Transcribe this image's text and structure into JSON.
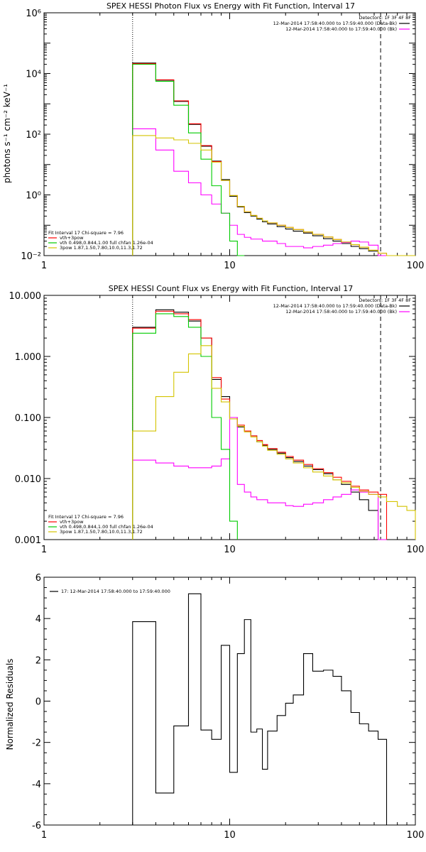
{
  "chart_data": [
    {
      "type": "line",
      "title": "SPEX HESSI Photon Flux vs Energy with Fit Function, Interval 17",
      "ylabel": "photons s⁻¹ cm⁻² keV⁻¹",
      "xlabel": "",
      "xscale": "log",
      "yscale": "log",
      "xlim": [
        1,
        100
      ],
      "ylim": [
        0.01,
        1000000
      ],
      "xticks": [
        1,
        10,
        100
      ],
      "xtick_labels": [
        "1",
        "10",
        "100"
      ],
      "yticks": [
        0.01,
        1,
        100,
        10000,
        1000000
      ],
      "ytick_labels": [
        "10⁻²",
        "10⁰",
        "10²",
        "10⁴",
        "10⁶"
      ],
      "vlines": [
        {
          "x": 3,
          "style": "dotted"
        },
        {
          "x": 65,
          "style": "dashed"
        }
      ],
      "legend_top": {
        "header": "Detectors: 1F 3F 4F 8F",
        "entries": [
          {
            "text": "12-Mar-2014 17:58:40.000 to 17:59:40.000 (Data-Bk)",
            "color": "#000000"
          },
          {
            "text": "12-Mar-2014 17:58:40.000 to 17:59:40.000 (Bk)",
            "color": "#ff00ff"
          }
        ]
      },
      "legend_bottom": {
        "header": "Fit Interval 17    Chi-square = 7.96",
        "entries": [
          {
            "text": "vth+3pow",
            "color": "#ff0000"
          },
          {
            "text": "vth 0.498,0.844,1.00  full chfan 1.26e-04",
            "color": "#00cc00"
          },
          {
            "text": "3pow 1.87,1.50,7.80,10.0,11.3,1.72",
            "color": "#d4c400"
          }
        ]
      },
      "edges": [
        3,
        4,
        5,
        6,
        7,
        8,
        9,
        10,
        11,
        12,
        13,
        14,
        15,
        16,
        18,
        20,
        22,
        25,
        28,
        32,
        36,
        40,
        45,
        50,
        56,
        63,
        70,
        80,
        90,
        100
      ],
      "series": [
        {
          "name": "Data-Bk",
          "color": "#000000",
          "values": [
            22000,
            6000,
            1200,
            210,
            40,
            13,
            3.2,
            0.9,
            0.4,
            0.26,
            0.2,
            0.16,
            0.13,
            0.11,
            0.09,
            0.075,
            0.064,
            0.055,
            0.045,
            0.036,
            0.03,
            0.025,
            0.02,
            0.017,
            0.014,
            0.01,
            null,
            null,
            null
          ]
        },
        {
          "name": "vth+3pow",
          "color": "#ff0000",
          "values": [
            21000,
            6200,
            1250,
            220,
            42,
            12.5,
            3.0,
            0.95,
            0.42,
            0.28,
            0.21,
            0.17,
            0.14,
            0.12,
            0.1,
            0.085,
            0.072,
            0.06,
            0.05,
            0.041,
            0.034,
            0.028,
            0.023,
            0.019,
            0.015,
            0.012,
            null,
            null,
            null
          ]
        },
        {
          "name": "Bk",
          "color": "#ff00ff",
          "values": [
            150,
            30,
            6,
            2.5,
            1.0,
            0.5,
            0.25,
            0.1,
            0.05,
            0.04,
            0.035,
            0.035,
            0.03,
            0.03,
            0.025,
            0.02,
            0.02,
            0.018,
            0.02,
            0.022,
            0.025,
            0.027,
            0.03,
            0.028,
            0.022,
            0.008,
            null,
            null,
            null
          ]
        },
        {
          "name": "vth",
          "color": "#00cc00",
          "values": [
            20000,
            5500,
            900,
            110,
            15,
            2.0,
            0.25,
            0.03,
            0.003,
            null,
            null,
            null,
            null,
            null,
            null,
            null,
            null,
            null,
            null,
            null,
            null,
            null,
            null,
            null,
            null,
            null,
            null,
            null,
            null
          ]
        },
        {
          "name": "3pow",
          "color": "#d4c400",
          "values": [
            90,
            75,
            65,
            50,
            30,
            12,
            3.0,
            0.95,
            0.42,
            0.28,
            0.21,
            0.17,
            0.14,
            0.12,
            0.1,
            0.085,
            0.072,
            0.06,
            0.05,
            0.041,
            0.034,
            0.028,
            0.023,
            0.019,
            0.015,
            0.012,
            0.009,
            0.007,
            0.0055
          ]
        }
      ]
    },
    {
      "type": "line",
      "title": "SPEX HESSI Count Flux vs Energy with Fit Function, Interval 17",
      "xlabel": "",
      "ylabel": "",
      "xscale": "log",
      "yscale": "log",
      "xlim": [
        1,
        100
      ],
      "ylim": [
        0.001,
        10
      ],
      "xticks": [
        1,
        10,
        100
      ],
      "xtick_labels": [
        "1",
        "10",
        "100"
      ],
      "yticks": [
        0.001,
        0.01,
        0.1,
        1,
        10
      ],
      "ytick_labels": [
        "0.001",
        "0.010",
        "0.100",
        "1.000",
        "10.000"
      ],
      "vlines": [
        {
          "x": 3,
          "style": "dotted"
        },
        {
          "x": 65,
          "style": "dashed"
        }
      ],
      "legend_top": {
        "header": "Detectors: 1F 3F 4F 8F",
        "entries": [
          {
            "text": "12-Mar-2014 17:58:40.000 to 17:59:40.000 (Data-Bk)",
            "color": "#000000"
          },
          {
            "text": "12-Mar-2014 17:58:40.000 to 17:59:40.000 (Bk)",
            "color": "#ff00ff"
          }
        ]
      },
      "legend_bottom": {
        "header": "Fit Interval 17    Chi-square = 7.96",
        "entries": [
          {
            "text": "vth+3pow",
            "color": "#ff0000"
          },
          {
            "text": "vth 0.498,0.844,1.00  full chfan 1.26e-04",
            "color": "#00cc00"
          },
          {
            "text": "3pow 1.87,1.50,7.80,10.0,11.3,1.72",
            "color": "#d4c400"
          }
        ]
      },
      "edges": [
        3,
        4,
        5,
        6,
        7,
        8,
        9,
        10,
        11,
        12,
        13,
        14,
        15,
        16,
        18,
        20,
        22,
        25,
        28,
        32,
        36,
        40,
        45,
        50,
        56,
        63,
        70,
        80,
        90,
        100
      ],
      "series": [
        {
          "name": "Data-Bk",
          "color": "#000000",
          "values": [
            3.0,
            5.8,
            5.3,
            3.8,
            2.0,
            0.42,
            0.22,
            0.1,
            0.07,
            0.06,
            0.05,
            0.04,
            0.035,
            0.03,
            0.026,
            0.022,
            0.019,
            0.016,
            0.014,
            0.012,
            0.0095,
            0.008,
            0.006,
            0.0045,
            0.003,
            0.001,
            null,
            null,
            null
          ]
        },
        {
          "name": "vth+3pow",
          "color": "#ff0000",
          "values": [
            2.9,
            5.5,
            5.0,
            4.0,
            2.0,
            0.45,
            0.2,
            0.1,
            0.075,
            0.06,
            0.05,
            0.042,
            0.036,
            0.031,
            0.027,
            0.023,
            0.02,
            0.017,
            0.0145,
            0.0125,
            0.0105,
            0.009,
            0.0075,
            0.0065,
            0.006,
            0.0055,
            null,
            null,
            null
          ]
        },
        {
          "name": "Bk",
          "color": "#ff00ff",
          "values": [
            0.02,
            0.018,
            0.016,
            0.015,
            0.015,
            0.016,
            0.021,
            0.1,
            0.008,
            0.006,
            0.005,
            0.0045,
            0.0045,
            0.004,
            0.004,
            0.0036,
            0.0035,
            0.0038,
            0.004,
            0.0045,
            0.005,
            0.0055,
            0.0065,
            0.006,
            0.0055,
            0.00095,
            null,
            null,
            null
          ]
        },
        {
          "name": "vth",
          "color": "#00cc00",
          "values": [
            2.4,
            5.0,
            4.5,
            3.0,
            1.0,
            0.1,
            0.03,
            0.002,
            null,
            null,
            null,
            null,
            null,
            null,
            null,
            null,
            null,
            null,
            null,
            null,
            null,
            null,
            null,
            null,
            null,
            null,
            null,
            null,
            null
          ]
        },
        {
          "name": "3pow",
          "color": "#d4c400",
          "values": [
            0.06,
            0.22,
            0.55,
            1.1,
            1.5,
            0.3,
            0.18,
            0.095,
            0.072,
            0.058,
            0.048,
            0.04,
            0.034,
            0.029,
            0.025,
            0.021,
            0.018,
            0.015,
            0.0128,
            0.011,
            0.0095,
            0.0085,
            0.0072,
            0.0062,
            0.0055,
            0.005,
            0.0042,
            0.0035,
            0.003
          ]
        }
      ]
    },
    {
      "type": "line",
      "title": "",
      "ylabel": "Normalized Residuals",
      "xlabel": "",
      "xscale": "log",
      "yscale": "linear",
      "xlim": [
        1,
        100
      ],
      "ylim": [
        -6,
        6
      ],
      "xticks": [
        1,
        10,
        100
      ],
      "xtick_labels": [
        "1",
        "10",
        "100"
      ],
      "yticks": [
        -6,
        -4,
        -2,
        0,
        2,
        4,
        6
      ],
      "ytick_labels": [
        "-6",
        "-4",
        "-2",
        "0",
        "2",
        "4",
        "6"
      ],
      "legend_top": {
        "header": "",
        "entries": [
          {
            "text": "17: 12-Mar-2014 17:58:40.000 to 17:59:40.000",
            "color": "#000000"
          }
        ]
      },
      "edges": [
        3,
        4,
        5,
        6,
        7,
        8,
        9,
        10,
        11,
        12,
        13,
        14,
        15,
        16,
        18,
        20,
        22,
        25,
        28,
        32,
        36,
        40,
        45,
        50,
        56,
        63,
        70
      ],
      "series": [
        {
          "name": "17: 12-Mar-2014 17:58:40.000 to 17:59:40.000",
          "color": "#000000",
          "values": [
            3.85,
            -4.45,
            -1.2,
            5.2,
            -1.4,
            -1.85,
            2.7,
            -3.45,
            2.3,
            3.95,
            -1.5,
            -1.35,
            -3.3,
            -1.45,
            -0.7,
            -0.1,
            0.3,
            2.3,
            1.45,
            1.5,
            1.2,
            0.5,
            -0.55,
            -1.1,
            -1.45,
            -1.85
          ]
        }
      ]
    }
  ]
}
